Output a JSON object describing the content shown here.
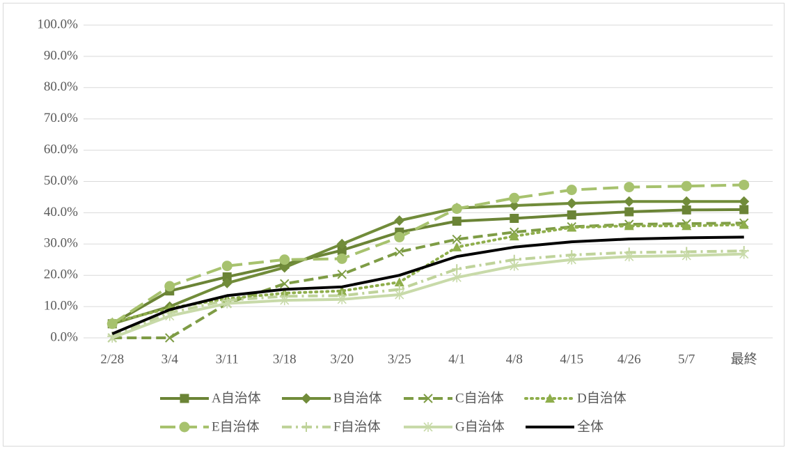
{
  "chart_data": {
    "type": "line",
    "categories": [
      "2/28",
      "3/4",
      "3/11",
      "3/18",
      "3/20",
      "3/25",
      "4/1",
      "4/8",
      "4/15",
      "4/26",
      "5/7",
      "最終"
    ],
    "ylim": [
      0,
      100
    ],
    "yticks": [
      {
        "value": 0,
        "label": "0.0%"
      },
      {
        "value": 10,
        "label": "10.0%"
      },
      {
        "value": 20,
        "label": "20.0%"
      },
      {
        "value": 30,
        "label": "30.0%"
      },
      {
        "value": 40,
        "label": "40.0%"
      },
      {
        "value": 50,
        "label": "50.0%"
      },
      {
        "value": 60,
        "label": "60.0%"
      },
      {
        "value": 70,
        "label": "70.0%"
      },
      {
        "value": 80,
        "label": "80.0%"
      },
      {
        "value": 90,
        "label": "90.0%"
      },
      {
        "value": 100,
        "label": "100.0%"
      }
    ],
    "grid": true,
    "legend": "bottom",
    "series": [
      {
        "name": "A自治体",
        "color": "#6b8436",
        "dash": "solid",
        "marker": "square",
        "values": [
          4.5,
          15,
          19.5,
          23.5,
          28,
          33.8,
          37.3,
          38.2,
          39.3,
          40.3,
          40.9,
          41.0
        ]
      },
      {
        "name": "B自治体",
        "color": "#718c3a",
        "dash": "solid",
        "marker": "diamond",
        "values": [
          4.5,
          10,
          17.5,
          22.5,
          30,
          37.5,
          41.5,
          42.3,
          43,
          43.6,
          43.6,
          43.6
        ]
      },
      {
        "name": "C自治体",
        "color": "#7e9c45",
        "dash": "dash",
        "marker": "x",
        "values": [
          0,
          0,
          11,
          17.3,
          20.3,
          27.5,
          31.5,
          33.8,
          35.5,
          36.3,
          36.5,
          36.7
        ]
      },
      {
        "name": "D自治体",
        "color": "#8fae4c",
        "dash": "dot",
        "marker": "triangle",
        "values": [
          5,
          9.5,
          12.5,
          14.3,
          15,
          17.8,
          29,
          32.5,
          35.3,
          35.8,
          35.8,
          36.2
        ]
      },
      {
        "name": "E自治体",
        "color": "#a7c26e",
        "dash": "longdash",
        "marker": "circle",
        "values": [
          4.5,
          16.5,
          23,
          25,
          25.3,
          32.2,
          41.3,
          44.7,
          47.3,
          48.2,
          48.5,
          48.9
        ]
      },
      {
        "name": "F自治体",
        "color": "#bfd39a",
        "dash": "dashdot",
        "marker": "plus",
        "values": [
          0.5,
          8,
          12,
          13.3,
          13.5,
          15.5,
          22,
          25,
          26.5,
          27.3,
          27.5,
          27.8
        ]
      },
      {
        "name": "G自治体",
        "color": "#c8daa9",
        "dash": "solid",
        "marker": "asterisk",
        "values": [
          0,
          7,
          11,
          12,
          12.3,
          13.8,
          19.3,
          23,
          25,
          26,
          26.3,
          26.8
        ]
      },
      {
        "name": "全体",
        "color": "#000000",
        "dash": "solid",
        "marker": "none",
        "values": [
          1.3,
          9,
          13.5,
          15.5,
          16.3,
          20,
          26,
          29,
          30.7,
          31.6,
          32,
          32.2
        ]
      }
    ]
  }
}
